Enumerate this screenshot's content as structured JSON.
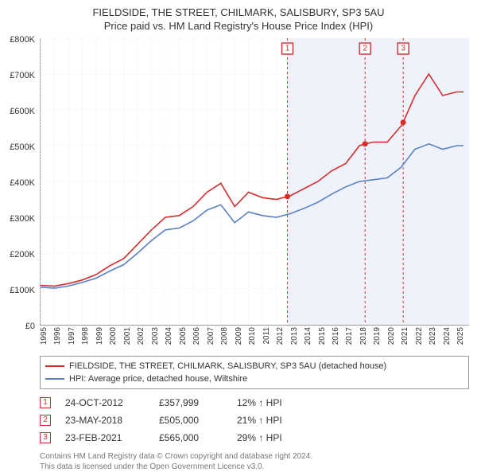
{
  "title_main": "FIELDSIDE, THE STREET, CHILMARK, SALISBURY, SP3 5AU",
  "title_sub": "Price paid vs. HM Land Registry's House Price Index (HPI)",
  "chart": {
    "type": "line",
    "xlim": [
      1995,
      2025.9
    ],
    "ylim": [
      0,
      800000
    ],
    "ytick_step": 100000,
    "y_ticks": [
      "£0",
      "£100K",
      "£200K",
      "£300K",
      "£400K",
      "£500K",
      "£600K",
      "£700K",
      "£800K"
    ],
    "x_ticks": [
      "1995",
      "1996",
      "1997",
      "1998",
      "1999",
      "2000",
      "2001",
      "2002",
      "2003",
      "2004",
      "2005",
      "2006",
      "2007",
      "2008",
      "2009",
      "2010",
      "2011",
      "2012",
      "2013",
      "2014",
      "2015",
      "2016",
      "2017",
      "2018",
      "2019",
      "2020",
      "2021",
      "2022",
      "2023",
      "2024",
      "2025"
    ],
    "background_color": "#ffffff",
    "grid_color": "#f0f0f0",
    "shade_color": "#eef3fb",
    "shade_start_year": 2012.8,
    "series": [
      {
        "name": "red",
        "color": "#d82c2c",
        "points": [
          [
            1995,
            110000
          ],
          [
            1996,
            108000
          ],
          [
            1997,
            115000
          ],
          [
            1998,
            125000
          ],
          [
            1999,
            140000
          ],
          [
            2000,
            165000
          ],
          [
            2001,
            185000
          ],
          [
            2002,
            225000
          ],
          [
            2003,
            265000
          ],
          [
            2004,
            300000
          ],
          [
            2005,
            305000
          ],
          [
            2006,
            330000
          ],
          [
            2007,
            370000
          ],
          [
            2008,
            395000
          ],
          [
            2009,
            330000
          ],
          [
            2010,
            370000
          ],
          [
            2011,
            355000
          ],
          [
            2012,
            350000
          ],
          [
            2012.8,
            358000
          ],
          [
            2013,
            360000
          ],
          [
            2014,
            380000
          ],
          [
            2015,
            400000
          ],
          [
            2016,
            430000
          ],
          [
            2017,
            450000
          ],
          [
            2018,
            500000
          ],
          [
            2018.4,
            505000
          ],
          [
            2019,
            510000
          ],
          [
            2020,
            510000
          ],
          [
            2021,
            555000
          ],
          [
            2021.15,
            565000
          ],
          [
            2022,
            640000
          ],
          [
            2023,
            700000
          ],
          [
            2024,
            640000
          ],
          [
            2025,
            650000
          ],
          [
            2025.5,
            650000
          ]
        ]
      },
      {
        "name": "blue",
        "color": "#5b7fc7",
        "points": [
          [
            1995,
            105000
          ],
          [
            1996,
            102000
          ],
          [
            1997,
            108000
          ],
          [
            1998,
            118000
          ],
          [
            1999,
            130000
          ],
          [
            2000,
            150000
          ],
          [
            2001,
            168000
          ],
          [
            2002,
            200000
          ],
          [
            2003,
            235000
          ],
          [
            2004,
            265000
          ],
          [
            2005,
            270000
          ],
          [
            2006,
            290000
          ],
          [
            2007,
            320000
          ],
          [
            2008,
            335000
          ],
          [
            2009,
            285000
          ],
          [
            2010,
            315000
          ],
          [
            2011,
            305000
          ],
          [
            2012,
            300000
          ],
          [
            2013,
            310000
          ],
          [
            2014,
            325000
          ],
          [
            2015,
            342000
          ],
          [
            2016,
            365000
          ],
          [
            2017,
            385000
          ],
          [
            2018,
            400000
          ],
          [
            2019,
            405000
          ],
          [
            2020,
            410000
          ],
          [
            2021,
            440000
          ],
          [
            2022,
            490000
          ],
          [
            2023,
            505000
          ],
          [
            2024,
            490000
          ],
          [
            2025,
            500000
          ],
          [
            2025.5,
            500000
          ]
        ]
      }
    ],
    "markers": [
      {
        "n": "1",
        "year": 2012.8,
        "price": 358000,
        "color": "#d82c2c"
      },
      {
        "n": "2",
        "year": 2018.4,
        "price": 505000,
        "color": "#d82c2c"
      },
      {
        "n": "3",
        "year": 2021.15,
        "price": 565000,
        "color": "#d82c2c"
      }
    ]
  },
  "legend": {
    "items": [
      {
        "color": "#d82c2c",
        "label": "FIELDSIDE, THE STREET, CHILMARK, SALISBURY, SP3 5AU (detached house)"
      },
      {
        "color": "#5b7fc7",
        "label": "HPI: Average price, detached house, Wiltshire"
      }
    ]
  },
  "events": [
    {
      "n": "1",
      "color": "#d82c2c",
      "date": "24-OCT-2012",
      "price": "£357,999",
      "pct": "12% ↑ HPI"
    },
    {
      "n": "2",
      "color": "#d82c2c",
      "date": "23-MAY-2018",
      "price": "£505,000",
      "pct": "21% ↑ HPI"
    },
    {
      "n": "3",
      "color": "#d82c2c",
      "date": "23-FEB-2021",
      "price": "£565,000",
      "pct": "29% ↑ HPI"
    }
  ],
  "footer_line1": "Contains HM Land Registry data © Crown copyright and database right 2024.",
  "footer_line2": "This data is licensed under the Open Government Licence v3.0."
}
